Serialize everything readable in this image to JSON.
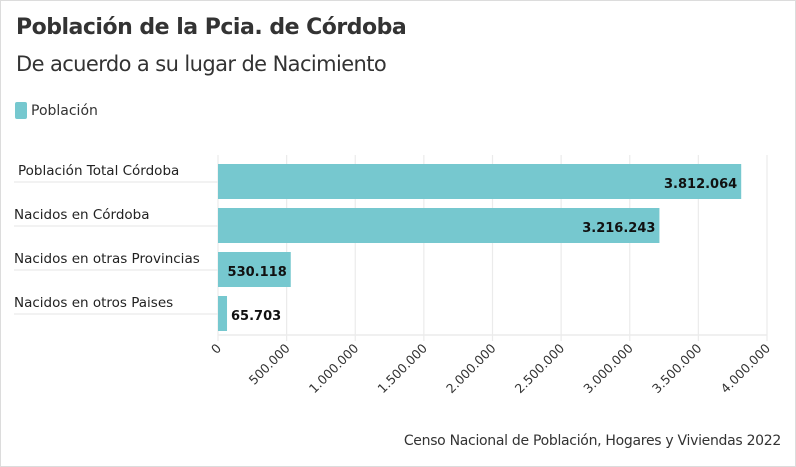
{
  "title": "Población de la Pcia. de Córdoba",
  "subtitle": "De acuerdo a su lugar de Nacimiento",
  "source": "Censo Nacional de Población, Hogares y Viviendas 2022",
  "colors": {
    "bar": "#76c8cf",
    "grid": "#ebebeb",
    "text": "#333333"
  },
  "chart_data": {
    "type": "bar",
    "orientation": "horizontal",
    "title": "Población de la Pcia. de Córdoba",
    "subtitle": "De acuerdo a su lugar de Nacimiento",
    "legend": {
      "position": "top-left",
      "entries": [
        "Población"
      ]
    },
    "categories": [
      "Población Total Córdoba",
      "Nacidos en Córdoba",
      "Nacidos en otras Provincias",
      "Nacidos en otros Paises"
    ],
    "series": [
      {
        "name": "Población",
        "values": [
          3812064,
          3216243,
          530118,
          65703
        ],
        "labels": [
          "3.812.064",
          "3.216.243",
          "530.118",
          "65.703"
        ]
      }
    ],
    "xlim": [
      0,
      4000000
    ],
    "xticks": [
      0,
      500000,
      1000000,
      1500000,
      2000000,
      2500000,
      3000000,
      3500000,
      4000000
    ],
    "xtick_labels": [
      "0",
      "500.000",
      "1.000.000",
      "1.500.000",
      "2.000.000",
      "2.500.000",
      "3.000.000",
      "3.500.000",
      "4.000.000"
    ],
    "xlabel": "",
    "ylabel": "",
    "grid": true
  }
}
